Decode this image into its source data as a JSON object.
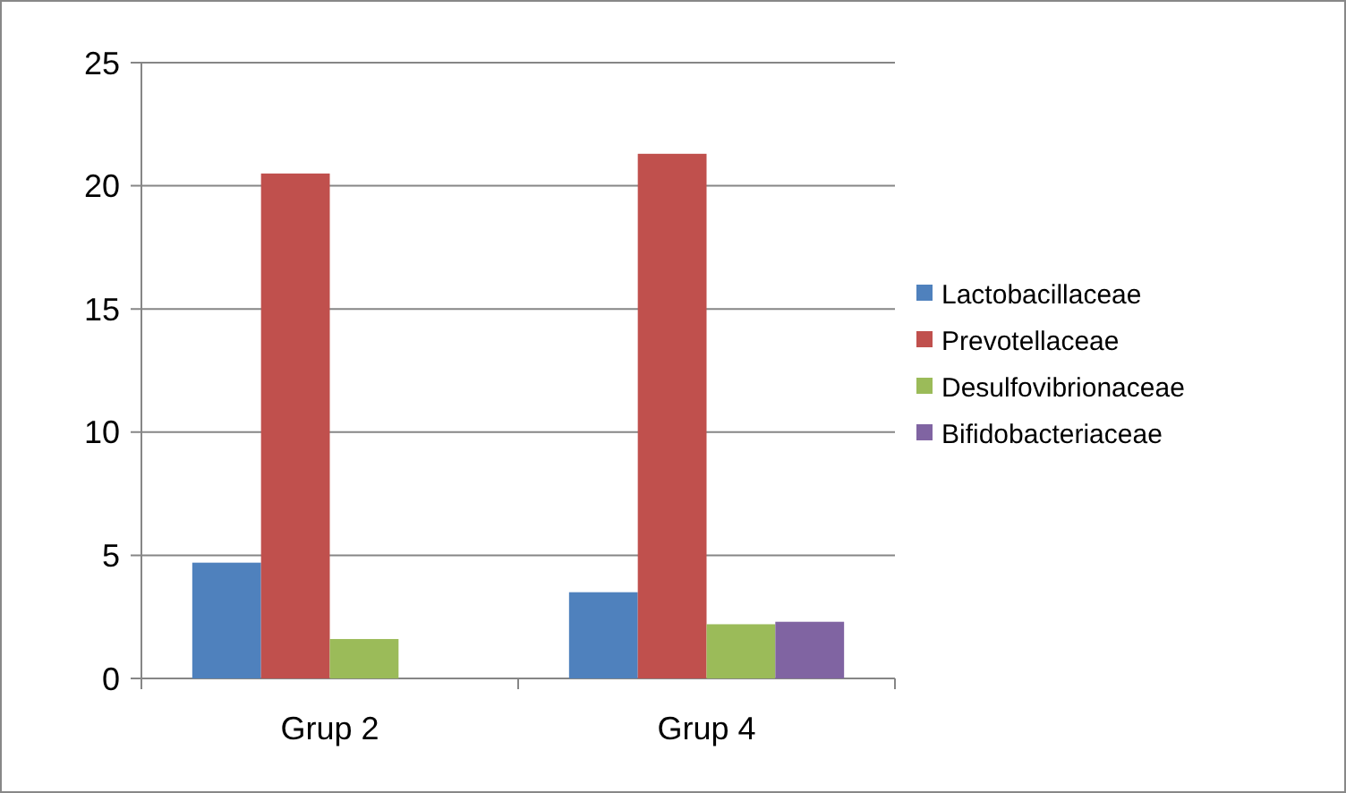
{
  "chart_data": {
    "type": "bar",
    "categories": [
      "Grup 2",
      "Grup 4"
    ],
    "series": [
      {
        "name": "Lactobacillaceae",
        "color": "#4f81bd",
        "values": [
          4.7,
          3.5
        ]
      },
      {
        "name": "Prevotellaceae",
        "color": "#c0504d",
        "values": [
          20.5,
          21.3
        ]
      },
      {
        "name": "Desulfovibrionaceae",
        "color": "#9bbb59",
        "values": [
          1.6,
          2.2
        ]
      },
      {
        "name": "Bifidobacteriaceae",
        "color": "#8064a2",
        "values": [
          null,
          2.3
        ]
      }
    ],
    "ylim": [
      0,
      25
    ],
    "yticks": [
      0,
      5,
      10,
      15,
      20,
      25
    ],
    "grid": "y",
    "legend": "right"
  }
}
